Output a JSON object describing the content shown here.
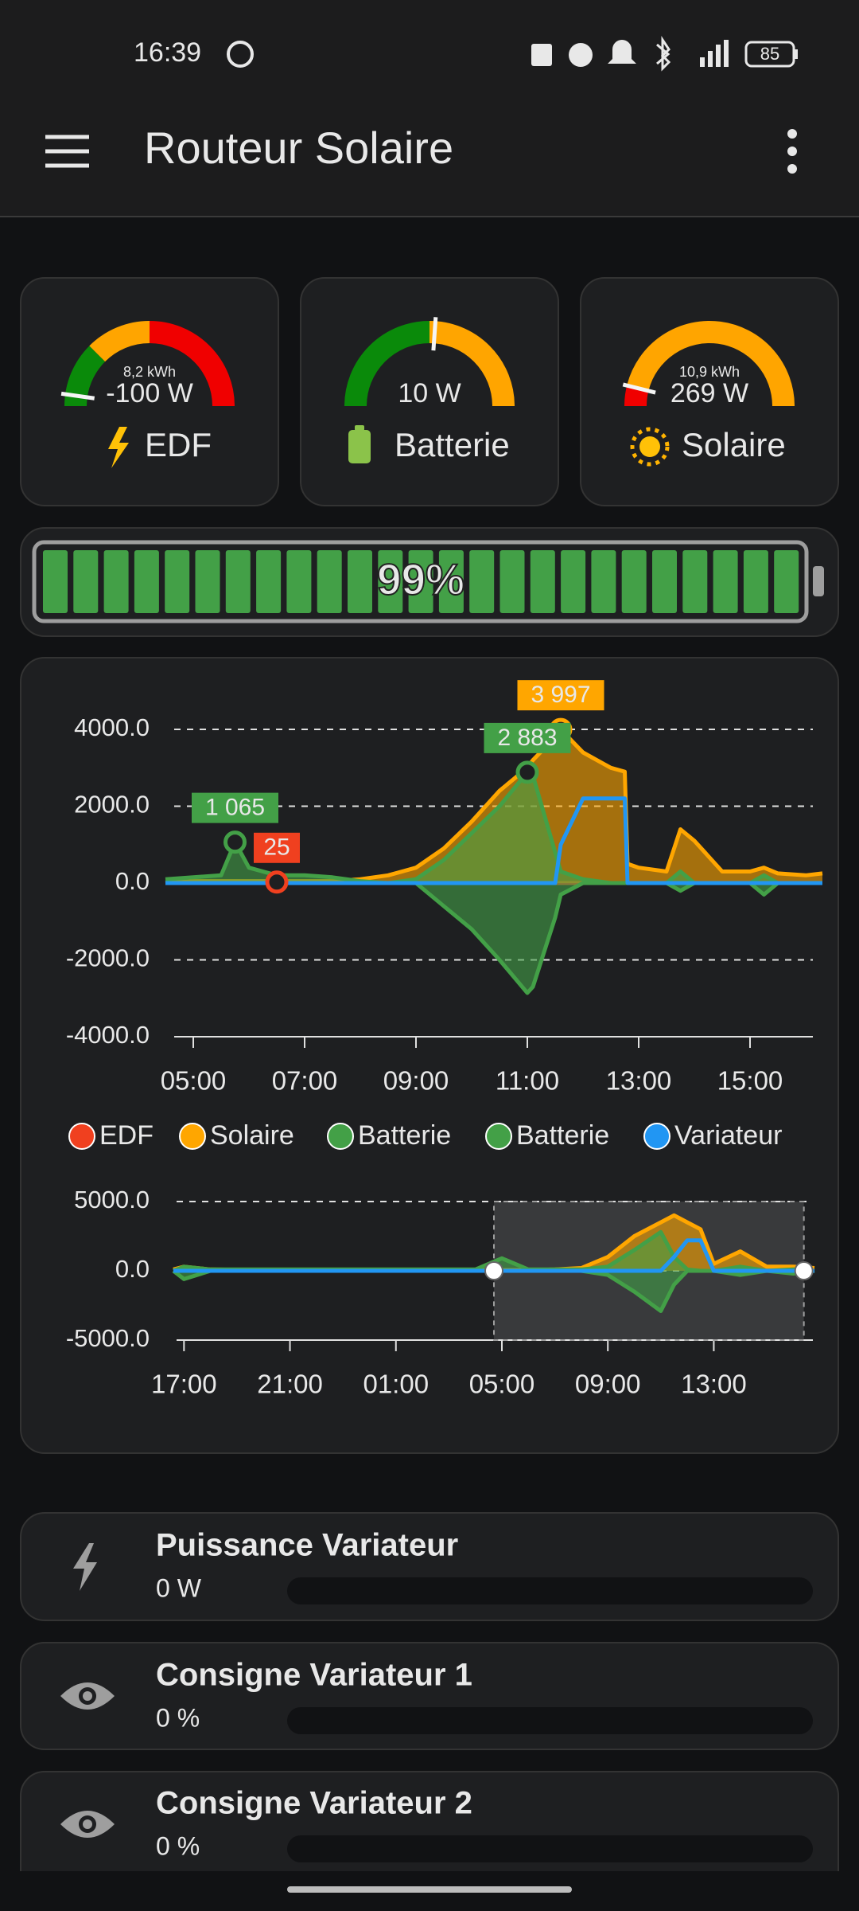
{
  "status_bar": {
    "time": "16:39",
    "battery": "85"
  },
  "app_bar": {
    "title": "Routeur Solaire"
  },
  "gauges": [
    {
      "energy": "8,2 kWh",
      "value": "-100 W",
      "label": "EDF"
    },
    {
      "value": "10 W",
      "label": "Batterie"
    },
    {
      "energy": "10,9 kWh",
      "value": "269 W",
      "label": "Solaire"
    }
  ],
  "battery": {
    "level": "99%"
  },
  "chart_data": [
    {
      "type": "area",
      "x": [
        4.5,
        5,
        5.5,
        5.75,
        6,
        6.5,
        7,
        7.5,
        8,
        8.5,
        9,
        9.5,
        10,
        10.5,
        11,
        11.1,
        11.5,
        11.6,
        12,
        12.5,
        12.75,
        12.8,
        13,
        13.5,
        13.75,
        14,
        14.5,
        15,
        15.25,
        15.5,
        16,
        16.3
      ],
      "xlim": [
        4.5,
        16.3
      ],
      "xticks": [
        {
          "value": 5,
          "label": "05:00"
        },
        {
          "value": 7,
          "label": "07:00"
        },
        {
          "value": 9,
          "label": "09:00"
        },
        {
          "value": 11,
          "label": "11:00"
        },
        {
          "value": 13,
          "label": "13:00"
        },
        {
          "value": 15,
          "label": "15:00"
        }
      ],
      "ylim": [
        -4000,
        4000
      ],
      "yticks": [
        {
          "value": -4000,
          "label": "-4000.0"
        },
        {
          "value": -2000,
          "label": "-2000.0"
        },
        {
          "value": 0,
          "label": "0.0"
        },
        {
          "value": 2000,
          "label": "2000.0"
        },
        {
          "value": 4000,
          "label": "4000.0"
        }
      ],
      "grid": true,
      "series": [
        {
          "name": "EDF",
          "color": "#f0401f",
          "area": false,
          "values": [
            0,
            0,
            0,
            0,
            0,
            25,
            0,
            0,
            0,
            0,
            0,
            0,
            0,
            0,
            0,
            0,
            0,
            0,
            0,
            0,
            0,
            0,
            0,
            0,
            0,
            0,
            0,
            0,
            0,
            0,
            0,
            0
          ],
          "value_labels": [
            null,
            null,
            null,
            null,
            null,
            "25",
            null,
            null,
            null,
            null,
            null,
            null,
            null,
            null,
            null,
            null,
            null,
            null,
            null,
            null,
            null,
            null,
            null,
            null,
            null,
            null,
            null,
            null,
            null,
            null,
            null,
            null
          ]
        },
        {
          "name": "Solaire",
          "color": "#ffa600",
          "area": true,
          "values": [
            0,
            50,
            50,
            50,
            50,
            50,
            50,
            50,
            100,
            200,
            400,
            900,
            1600,
            2400,
            3000,
            3200,
            3800,
            3997,
            3400,
            3000,
            2900,
            500,
            400,
            300,
            1400,
            1100,
            300,
            300,
            400,
            250,
            200,
            250
          ],
          "value_labels": [
            null,
            null,
            null,
            null,
            null,
            null,
            null,
            null,
            null,
            null,
            null,
            null,
            null,
            null,
            null,
            null,
            null,
            "3 997",
            null,
            null,
            null,
            null,
            null,
            null,
            null,
            null,
            null,
            null,
            null,
            null,
            null,
            null
          ]
        },
        {
          "name": "Batterie",
          "color": "#43a047",
          "area": true,
          "values": [
            100,
            150,
            200,
            1065,
            400,
            200,
            200,
            150,
            50,
            0,
            100,
            600,
            1300,
            2000,
            2883,
            2800,
            800,
            300,
            100,
            0,
            0,
            0,
            0,
            0,
            300,
            0,
            0,
            0,
            200,
            0,
            0,
            0
          ],
          "value_labels": [
            null,
            null,
            null,
            "1 065",
            null,
            null,
            null,
            null,
            null,
            null,
            null,
            null,
            null,
            null,
            "2 883",
            null,
            null,
            null,
            null,
            null,
            null,
            null,
            null,
            null,
            null,
            null,
            null,
            null,
            null,
            null,
            null,
            null
          ]
        },
        {
          "name": "Batterie",
          "color": "#43a047",
          "area": true,
          "values": [
            0,
            0,
            0,
            0,
            0,
            0,
            0,
            0,
            0,
            0,
            0,
            -600,
            -1200,
            -2000,
            -2860,
            -2700,
            -900,
            -300,
            0,
            0,
            0,
            0,
            0,
            0,
            -200,
            0,
            0,
            0,
            -300,
            0,
            0,
            0
          ]
        },
        {
          "name": "Variateur",
          "color": "#2196f3",
          "area": false,
          "values": [
            0,
            0,
            0,
            0,
            0,
            0,
            0,
            0,
            0,
            0,
            0,
            0,
            0,
            0,
            0,
            0,
            0,
            1000,
            2200,
            2200,
            2200,
            0,
            0,
            0,
            0,
            0,
            0,
            0,
            0,
            0,
            0,
            0
          ]
        }
      ]
    },
    {
      "type": "area",
      "x": [
        16.6,
        17,
        18,
        20,
        22,
        24,
        26,
        28,
        29,
        30,
        31,
        32,
        33,
        34,
        35,
        35.5,
        36,
        36.5,
        37,
        38,
        39,
        40,
        40.8
      ],
      "xlim": [
        16.6,
        40.8
      ],
      "xticks": [
        {
          "value": 17,
          "label": "17:00"
        },
        {
          "value": 21,
          "label": "21:00"
        },
        {
          "value": 25,
          "label": "01:00"
        },
        {
          "value": 29,
          "label": "05:00"
        },
        {
          "value": 33,
          "label": "09:00"
        },
        {
          "value": 37,
          "label": "13:00"
        }
      ],
      "ylim": [
        -5000,
        5000
      ],
      "yticks": [
        {
          "value": -5000,
          "label": "-5000.0"
        },
        {
          "value": 0,
          "label": "0.0"
        },
        {
          "value": 5000,
          "label": "5000.0"
        }
      ],
      "grid": true,
      "selection": [
        28.7,
        40.4
      ],
      "series": [
        {
          "color": "#ffa600",
          "area": true,
          "values": [
            100,
            300,
            100,
            50,
            50,
            50,
            50,
            50,
            50,
            50,
            100,
            200,
            1000,
            2500,
            3500,
            4000,
            3500,
            3000,
            500,
            1400,
            300,
            300,
            200
          ]
        },
        {
          "color": "#43a047",
          "area": true,
          "values": [
            0,
            300,
            100,
            100,
            100,
            100,
            100,
            100,
            900,
            100,
            100,
            100,
            300,
            1500,
            2800,
            1000,
            100,
            0,
            0,
            300,
            0,
            100,
            0
          ]
        },
        {
          "color": "#43a047",
          "area": true,
          "values": [
            0,
            -600,
            0,
            0,
            0,
            0,
            0,
            0,
            0,
            0,
            0,
            0,
            -300,
            -1500,
            -2900,
            -1000,
            0,
            0,
            0,
            -300,
            0,
            -200,
            0
          ]
        },
        {
          "color": "#2196f3",
          "area": false,
          "values": [
            0,
            0,
            0,
            0,
            0,
            0,
            0,
            0,
            0,
            0,
            0,
            0,
            0,
            0,
            0,
            1000,
            2200,
            2200,
            0,
            0,
            0,
            0,
            0
          ]
        }
      ]
    }
  ],
  "entities": [
    {
      "name": "Puissance Variateur",
      "state": "0 W"
    },
    {
      "name": "Consigne Variateur 1",
      "state": "0 %"
    },
    {
      "name": "Consigne Variateur 2",
      "state": "0 %"
    }
  ]
}
